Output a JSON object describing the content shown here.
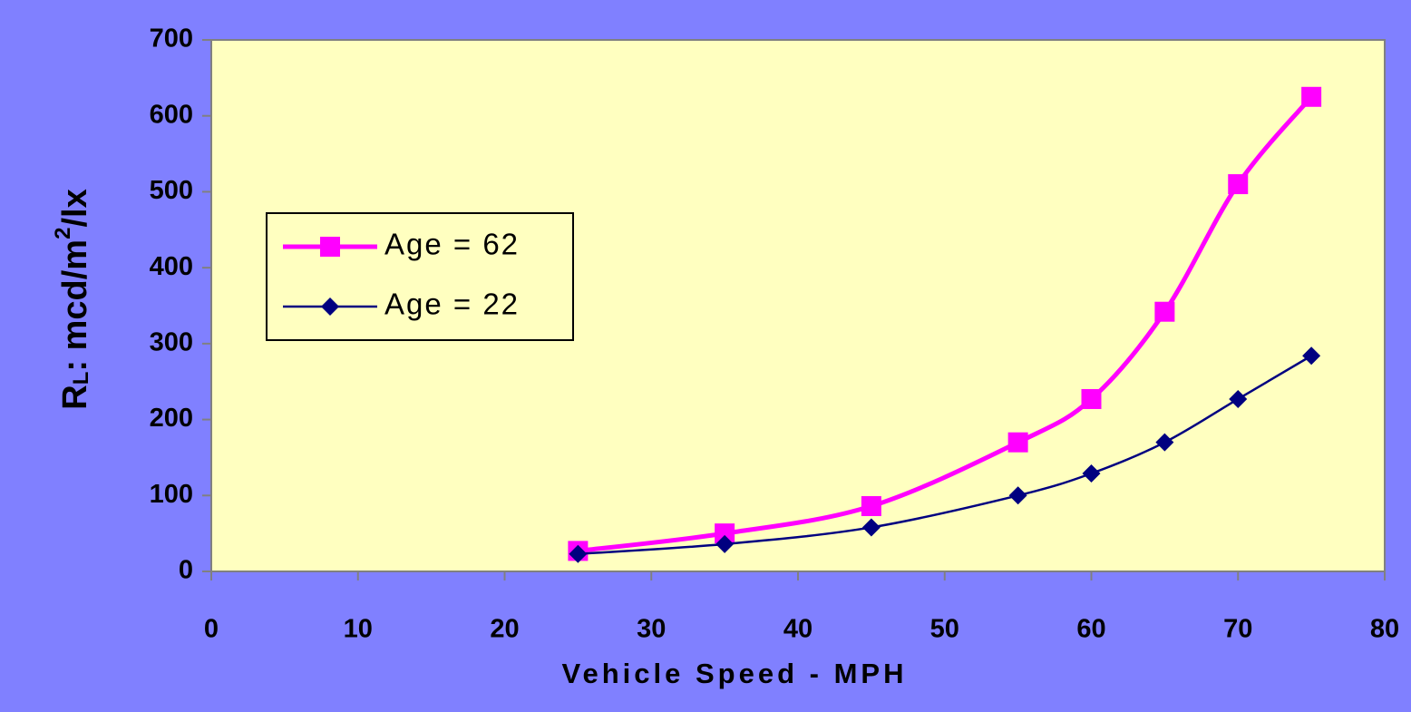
{
  "chart_data": {
    "type": "line",
    "x_label": "Vehicle Speed - MPH",
    "y_label_parts": [
      "R",
      "L",
      ": mcd/m",
      "2",
      "/lx"
    ],
    "series": [
      {
        "name": "Age = 62",
        "color": "#ff00ff",
        "marker": "square",
        "x": [
          25,
          35,
          45,
          55,
          60,
          65,
          70,
          75
        ],
        "values": [
          27,
          50,
          86,
          170,
          227,
          342,
          510,
          625
        ]
      },
      {
        "name": "Age = 22",
        "color": "#000080",
        "marker": "diamond",
        "x": [
          25,
          35,
          45,
          55,
          60,
          65,
          70,
          75
        ],
        "values": [
          23,
          36,
          58,
          100,
          129,
          170,
          227,
          284
        ]
      }
    ],
    "xlim": [
      0,
      80
    ],
    "xticks": [
      0,
      10,
      20,
      30,
      40,
      50,
      60,
      70,
      80
    ],
    "ylim": [
      0,
      700
    ],
    "yticks": [
      0,
      100,
      200,
      300,
      400,
      500,
      600,
      700
    ],
    "grid": false,
    "legend": "center-left"
  }
}
